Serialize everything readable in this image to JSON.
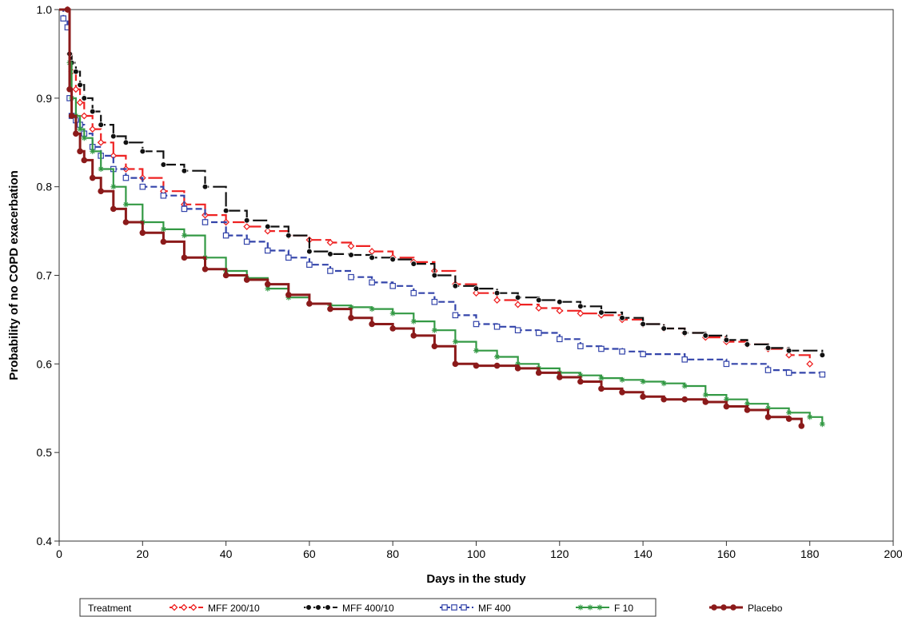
{
  "chart_data": {
    "type": "line",
    "subtype": "kaplan-meier step",
    "title": "",
    "xlabel": "Days in the study",
    "ylabel": "Probability of no COPD exacerbation",
    "xlim": [
      0,
      200
    ],
    "ylim": [
      0.4,
      1.0
    ],
    "xticks": [
      0,
      20,
      40,
      60,
      80,
      100,
      120,
      140,
      160,
      180,
      200
    ],
    "yticks": [
      0.4,
      0.5,
      0.6,
      0.7,
      0.8,
      0.9,
      1.0
    ],
    "grid": false,
    "legend": {
      "placement": "bottom",
      "title": "Treatment"
    },
    "series": [
      {
        "name": "MFF 200/10",
        "color": "#ee2222",
        "dash": "long-dash",
        "marker": "diamond-open",
        "x": [
          0,
          2,
          2.5,
          3,
          4,
          5,
          6,
          8,
          10,
          13,
          16,
          20,
          25,
          30,
          35,
          40,
          45,
          50,
          55,
          60,
          65,
          70,
          75,
          80,
          85,
          90,
          95,
          100,
          105,
          110,
          115,
          120,
          125,
          130,
          135,
          140,
          145,
          150,
          155,
          160,
          165,
          170,
          175,
          180
        ],
        "y": [
          1.0,
          1.0,
          0.95,
          0.93,
          0.91,
          0.895,
          0.88,
          0.865,
          0.85,
          0.835,
          0.82,
          0.81,
          0.795,
          0.78,
          0.768,
          0.76,
          0.755,
          0.75,
          0.745,
          0.74,
          0.737,
          0.733,
          0.727,
          0.72,
          0.715,
          0.705,
          0.69,
          0.68,
          0.672,
          0.667,
          0.663,
          0.66,
          0.657,
          0.655,
          0.65,
          0.645,
          0.64,
          0.635,
          0.63,
          0.625,
          0.622,
          0.617,
          0.61,
          0.6
        ]
      },
      {
        "name": "MFF 400/10",
        "color": "#111111",
        "dash": "long-dash",
        "marker": "circle-half",
        "x": [
          0,
          2,
          2.5,
          3,
          4,
          5,
          6,
          8,
          10,
          13,
          16,
          20,
          25,
          30,
          35,
          40,
          45,
          50,
          55,
          60,
          65,
          70,
          75,
          80,
          85,
          90,
          95,
          100,
          105,
          110,
          115,
          120,
          125,
          130,
          135,
          140,
          145,
          150,
          155,
          160,
          165,
          170,
          175,
          183
        ],
        "y": [
          1.0,
          1.0,
          0.95,
          0.94,
          0.93,
          0.915,
          0.9,
          0.885,
          0.87,
          0.857,
          0.85,
          0.84,
          0.825,
          0.818,
          0.8,
          0.773,
          0.762,
          0.755,
          0.745,
          0.727,
          0.724,
          0.723,
          0.72,
          0.718,
          0.713,
          0.7,
          0.688,
          0.685,
          0.68,
          0.675,
          0.672,
          0.67,
          0.665,
          0.658,
          0.652,
          0.645,
          0.64,
          0.635,
          0.632,
          0.627,
          0.622,
          0.618,
          0.615,
          0.61
        ]
      },
      {
        "name": "MF 400",
        "color": "#3344aa",
        "dash": "short-dash",
        "marker": "square-open",
        "x": [
          0,
          1,
          2,
          2.5,
          3,
          4,
          5,
          6,
          8,
          10,
          13,
          16,
          20,
          25,
          30,
          35,
          40,
          45,
          50,
          55,
          60,
          65,
          70,
          75,
          80,
          85,
          90,
          95,
          100,
          105,
          110,
          115,
          120,
          125,
          130,
          135,
          140,
          150,
          160,
          170,
          175,
          183
        ],
        "y": [
          1.0,
          0.99,
          0.98,
          0.9,
          0.88,
          0.875,
          0.87,
          0.86,
          0.845,
          0.835,
          0.82,
          0.81,
          0.8,
          0.79,
          0.775,
          0.76,
          0.745,
          0.738,
          0.728,
          0.72,
          0.712,
          0.705,
          0.698,
          0.692,
          0.688,
          0.68,
          0.67,
          0.655,
          0.645,
          0.642,
          0.638,
          0.635,
          0.628,
          0.62,
          0.617,
          0.614,
          0.611,
          0.605,
          0.6,
          0.593,
          0.59,
          0.588
        ]
      },
      {
        "name": "F 10",
        "color": "#339944",
        "dash": "solid",
        "marker": "star",
        "x": [
          0,
          2,
          2.5,
          3,
          4,
          5,
          6,
          8,
          10,
          13,
          16,
          20,
          25,
          30,
          35,
          40,
          45,
          50,
          55,
          60,
          65,
          70,
          75,
          80,
          85,
          90,
          95,
          100,
          105,
          110,
          115,
          120,
          125,
          130,
          135,
          140,
          145,
          150,
          155,
          160,
          165,
          170,
          175,
          180,
          183
        ],
        "y": [
          1.0,
          1.0,
          0.94,
          0.9,
          0.88,
          0.865,
          0.855,
          0.84,
          0.82,
          0.8,
          0.78,
          0.76,
          0.752,
          0.745,
          0.72,
          0.705,
          0.697,
          0.685,
          0.675,
          0.668,
          0.666,
          0.664,
          0.662,
          0.657,
          0.648,
          0.638,
          0.625,
          0.615,
          0.608,
          0.6,
          0.595,
          0.59,
          0.587,
          0.584,
          0.582,
          0.58,
          0.578,
          0.575,
          0.565,
          0.56,
          0.555,
          0.55,
          0.545,
          0.54,
          0.532
        ]
      },
      {
        "name": "Placebo",
        "color": "#8b1a1a",
        "dash": "solid",
        "marker": "circle-filled",
        "x": [
          0,
          2,
          2.5,
          3,
          4,
          5,
          6,
          8,
          10,
          13,
          16,
          20,
          25,
          30,
          35,
          40,
          45,
          50,
          55,
          60,
          65,
          70,
          75,
          80,
          85,
          90,
          95,
          100,
          105,
          110,
          115,
          120,
          125,
          130,
          135,
          140,
          145,
          150,
          155,
          160,
          165,
          170,
          175,
          178
        ],
        "y": [
          1.0,
          1.0,
          0.91,
          0.88,
          0.86,
          0.84,
          0.83,
          0.81,
          0.795,
          0.775,
          0.76,
          0.748,
          0.738,
          0.72,
          0.707,
          0.7,
          0.695,
          0.69,
          0.678,
          0.668,
          0.662,
          0.652,
          0.645,
          0.64,
          0.632,
          0.62,
          0.6,
          0.598,
          0.598,
          0.595,
          0.59,
          0.585,
          0.58,
          0.572,
          0.568,
          0.563,
          0.56,
          0.56,
          0.557,
          0.552,
          0.548,
          0.54,
          0.538,
          0.53
        ]
      }
    ]
  }
}
